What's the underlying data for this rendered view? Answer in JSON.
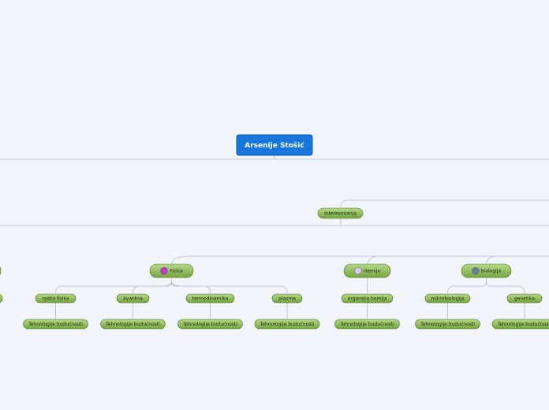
{
  "root": {
    "label": "Arsenije Stošić"
  },
  "branch": {
    "label": "Interesovanja"
  },
  "topics": [
    {
      "label": "Fizika",
      "children": [
        {
          "label": "opšta fizika",
          "leaf": "Tehnologije budućnosti"
        },
        {
          "label": "kvantna",
          "leaf": "Tehnologije budućnosti"
        },
        {
          "label": "termodinamika",
          "leaf": "Tehnologije budućnosti"
        },
        {
          "label": "plazma",
          "leaf": "Tehnologije budućnosti"
        }
      ]
    },
    {
      "label": "Hemija",
      "children": [
        {
          "label": "organska hemija",
          "leaf": "Tehnologije budućnosti"
        }
      ]
    },
    {
      "label": "biologija",
      "children": [
        {
          "label": "mikrobiologija",
          "leaf": "Tehnologije budućnosti"
        },
        {
          "label": "genetika",
          "leaf": "Tehnologije budućnosti"
        }
      ]
    }
  ]
}
